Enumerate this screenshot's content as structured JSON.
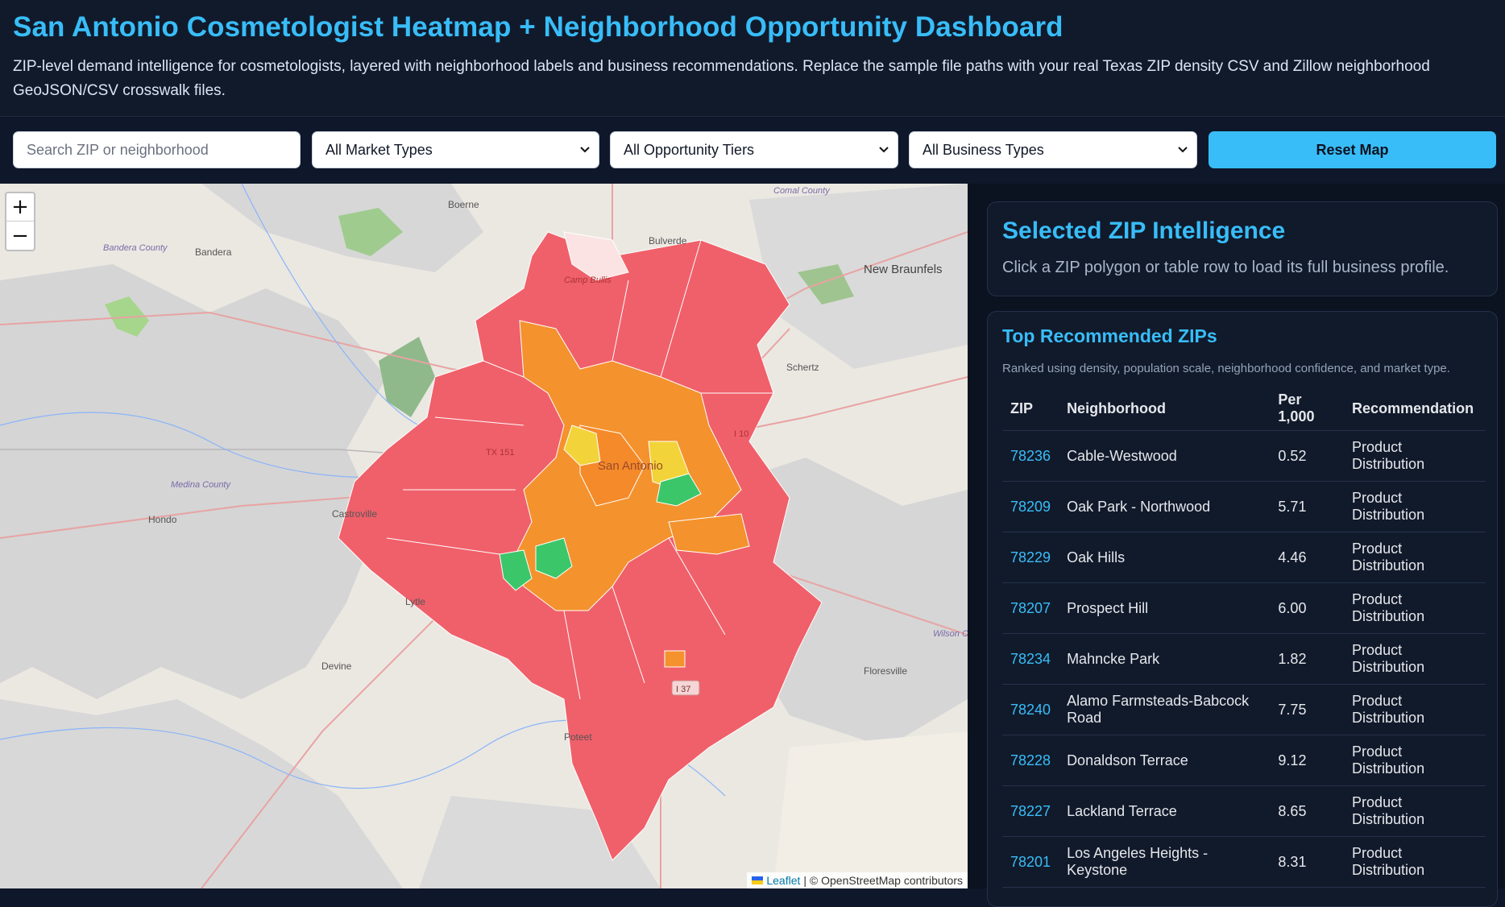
{
  "header": {
    "title": "San Antonio Cosmetologist Heatmap + Neighborhood Opportunity Dashboard",
    "subtitle": "ZIP-level demand intelligence for cosmetologists, layered with neighborhood labels and business recommendations. Replace the sample file paths with your real Texas ZIP density CSV and Zillow neighborhood GeoJSON/CSV crosswalk files."
  },
  "controls": {
    "search_placeholder": "Search ZIP or neighborhood",
    "market_types": "All Market Types",
    "opportunity_tiers": "All Opportunity Tiers",
    "business_types": "All Business Types",
    "reset_label": "Reset Map"
  },
  "map": {
    "zoom_in": "+",
    "zoom_out": "−",
    "attribution_leaflet": "Leaflet",
    "attribution_rest": "| © OpenStreetMap contributors",
    "labels": {
      "boerne": "Boerne",
      "bulverde": "Bulverde",
      "new_braunfels": "New Braunfels",
      "bandera_county": "Bandera County",
      "bandera": "Bandera",
      "camp_bullis": "Camp Bullis",
      "schertz": "Schertz",
      "medina_county": "Medina County",
      "hondo": "Hondo",
      "castroville": "Castroville",
      "san_antonio": "San Antonio",
      "lytle": "Lytle",
      "devine": "Devine",
      "floresville": "Floresville",
      "wilson_county": "Wilson County",
      "poteet": "Poteet",
      "comal_county": "Comal County",
      "i37": "I 37",
      "tx151": "TX 151",
      "i10": "I 10"
    },
    "colors": {
      "high": "#f0606a",
      "mid": "#f4922d",
      "low": "#f2d43a",
      "best": "#3cc66a"
    }
  },
  "selected": {
    "title": "Selected ZIP Intelligence",
    "hint": "Click a ZIP polygon or table row to load its full business profile."
  },
  "top": {
    "title": "Top Recommended ZIPs",
    "note": "Ranked using density, population scale, neighborhood confidence, and market type.",
    "columns": [
      "ZIP",
      "Neighborhood",
      "Per 1,000",
      "Recommendation"
    ],
    "rows": [
      {
        "zip": "78236",
        "neighborhood": "Cable-Westwood",
        "per": "0.52",
        "rec": "Product Distribution"
      },
      {
        "zip": "78209",
        "neighborhood": "Oak Park - Northwood",
        "per": "5.71",
        "rec": "Product Distribution"
      },
      {
        "zip": "78229",
        "neighborhood": "Oak Hills",
        "per": "4.46",
        "rec": "Product Distribution"
      },
      {
        "zip": "78207",
        "neighborhood": "Prospect Hill",
        "per": "6.00",
        "rec": "Product Distribution"
      },
      {
        "zip": "78234",
        "neighborhood": "Mahncke Park",
        "per": "1.82",
        "rec": "Product Distribution"
      },
      {
        "zip": "78240",
        "neighborhood": "Alamo Farmsteads-Babcock Road",
        "per": "7.75",
        "rec": "Product Distribution"
      },
      {
        "zip": "78228",
        "neighborhood": "Donaldson Terrace",
        "per": "9.12",
        "rec": "Product Distribution"
      },
      {
        "zip": "78227",
        "neighborhood": "Lackland Terrace",
        "per": "8.65",
        "rec": "Product Distribution"
      },
      {
        "zip": "78201",
        "neighborhood": "Los Angeles Heights - Keystone",
        "per": "8.31",
        "rec": "Product Distribution"
      }
    ]
  }
}
